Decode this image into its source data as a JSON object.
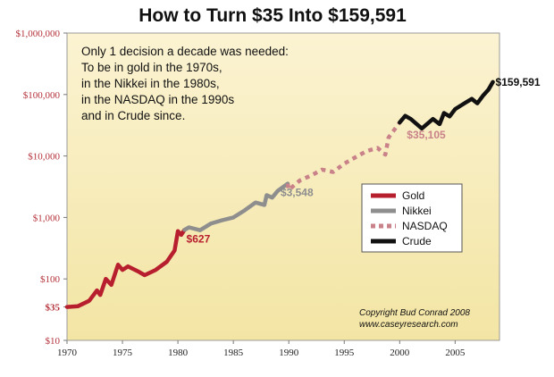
{
  "chart_data": {
    "type": "line",
    "title": "How to Turn $35 Into $159,591",
    "y_scale": "log",
    "ylim": [
      10,
      1000000
    ],
    "xlim": [
      1970,
      2009
    ],
    "y_ticks": [
      {
        "value": 1000000,
        "label": "$1,000,000"
      },
      {
        "value": 100000,
        "label": "$100,000"
      },
      {
        "value": 10000,
        "label": "$10,000"
      },
      {
        "value": 1000,
        "label": "$1,000"
      },
      {
        "value": 100,
        "label": "$100"
      },
      {
        "value": 35,
        "label": "$35"
      },
      {
        "value": 10,
        "label": "$10"
      }
    ],
    "x_ticks": [
      1970,
      1975,
      1980,
      1985,
      1990,
      1995,
      2000,
      2005
    ],
    "annotation_lines": [
      "Only 1 decision a decade was needed:",
      "To be in gold in the 1970s,",
      "in the Nikkei in the 1980s,",
      "in the NASDAQ in the 1990s",
      "and in Crude since."
    ],
    "copyright_lines": [
      "Copyright Bud Conrad 2008",
      "www.caseyresearch.com"
    ],
    "series": [
      {
        "name": "Gold",
        "color": "#b81f2e",
        "style": "solid",
        "points": [
          [
            1970,
            35
          ],
          [
            1971,
            36
          ],
          [
            1972,
            44
          ],
          [
            1972.7,
            65
          ],
          [
            1973,
            55
          ],
          [
            1973.5,
            100
          ],
          [
            1974,
            80
          ],
          [
            1974.6,
            170
          ],
          [
            1975,
            140
          ],
          [
            1975.5,
            160
          ],
          [
            1976.5,
            130
          ],
          [
            1977,
            115
          ],
          [
            1978,
            140
          ],
          [
            1979,
            190
          ],
          [
            1979.7,
            290
          ],
          [
            1980,
            600
          ],
          [
            1980.3,
            520
          ],
          [
            1980.6,
            627
          ]
        ]
      },
      {
        "name": "Nikkei",
        "color": "#8e8e8e",
        "style": "solid",
        "points": [
          [
            1980.6,
            627
          ],
          [
            1981,
            690
          ],
          [
            1982,
            620
          ],
          [
            1983,
            800
          ],
          [
            1984,
            900
          ],
          [
            1985,
            1000
          ],
          [
            1986,
            1300
          ],
          [
            1987,
            1750
          ],
          [
            1987.8,
            1600
          ],
          [
            1988,
            2300
          ],
          [
            1988.5,
            2100
          ],
          [
            1989,
            2700
          ],
          [
            1989.9,
            3548
          ]
        ]
      },
      {
        "name": "NASDAQ",
        "color": "#c98289",
        "style": "dotted",
        "points": [
          [
            1989.9,
            3548
          ],
          [
            1990,
            2800
          ],
          [
            1991,
            4000
          ],
          [
            1992,
            4800
          ],
          [
            1993,
            6000
          ],
          [
            1994,
            5500
          ],
          [
            1995,
            7500
          ],
          [
            1996,
            9500
          ],
          [
            1997,
            12000
          ],
          [
            1998,
            13500
          ],
          [
            1998.7,
            10500
          ],
          [
            1999,
            20000
          ],
          [
            2000,
            35105
          ]
        ]
      },
      {
        "name": "Crude",
        "color": "#111111",
        "style": "solid",
        "points": [
          [
            2000,
            35105
          ],
          [
            2000.5,
            45000
          ],
          [
            2001,
            40000
          ],
          [
            2002,
            28000
          ],
          [
            2003,
            40000
          ],
          [
            2003.6,
            33000
          ],
          [
            2004,
            50000
          ],
          [
            2004.5,
            44000
          ],
          [
            2005,
            58000
          ],
          [
            2006,
            75000
          ],
          [
            2006.5,
            85000
          ],
          [
            2007,
            72000
          ],
          [
            2007.5,
            95000
          ],
          [
            2008,
            120000
          ],
          [
            2008.4,
            159591
          ]
        ]
      }
    ],
    "point_labels": [
      {
        "text": "$627",
        "x": 1980.6,
        "y": 627,
        "color": "#b81f2e"
      },
      {
        "text": "$3,548",
        "x": 1989.9,
        "y": 3548,
        "color": "#8e8e8e"
      },
      {
        "text": "$35,105",
        "x": 2000,
        "y": 35105,
        "color": "#c98289"
      },
      {
        "text": "$159,591",
        "x": 2008.4,
        "y": 159591,
        "color": "#111111"
      }
    ],
    "colors": {
      "background_top": "#fbf3d2",
      "background_bottom": "#f3e5a4",
      "tick_label": "#b5313a"
    }
  }
}
